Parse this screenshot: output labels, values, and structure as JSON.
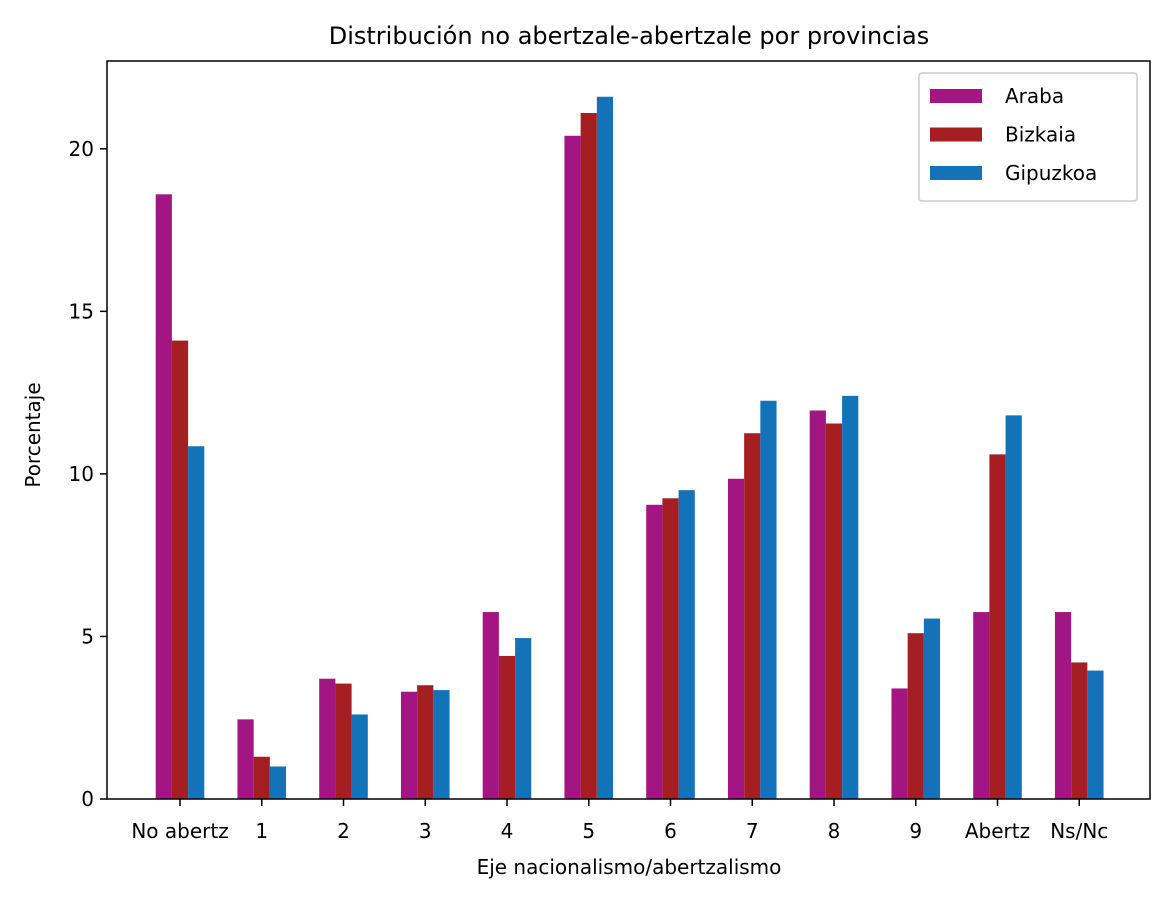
{
  "chart_data": {
    "type": "bar",
    "title": "Distribución no abertzale-abertzale por provincias",
    "xlabel": "Eje nacionalismo/abertzalismo",
    "ylabel": "Porcentaje",
    "categories": [
      "No abertz",
      "1",
      "2",
      "3",
      "4",
      "5",
      "6",
      "7",
      "8",
      "9",
      "Abertz",
      "Ns/Nc"
    ],
    "ylim": [
      0,
      22.7
    ],
    "yticks": [
      0,
      5,
      10,
      15,
      20
    ],
    "grid": false,
    "legend_position": "top-right",
    "series": [
      {
        "name": "Araba",
        "color": "#a31583",
        "values": [
          18.6,
          2.45,
          3.7,
          3.3,
          5.75,
          20.4,
          9.05,
          9.85,
          11.95,
          3.4,
          5.75,
          5.75
        ]
      },
      {
        "name": "Bizkaia",
        "color": "#a51f22",
        "values": [
          14.1,
          1.3,
          3.55,
          3.5,
          4.4,
          21.1,
          9.25,
          11.25,
          11.55,
          5.1,
          10.6,
          4.2
        ]
      },
      {
        "name": "Gipuzkoa",
        "color": "#1473b8",
        "values": [
          10.85,
          1.0,
          2.6,
          3.35,
          4.95,
          21.6,
          9.5,
          12.25,
          12.4,
          5.55,
          11.8,
          3.95
        ]
      }
    ]
  }
}
